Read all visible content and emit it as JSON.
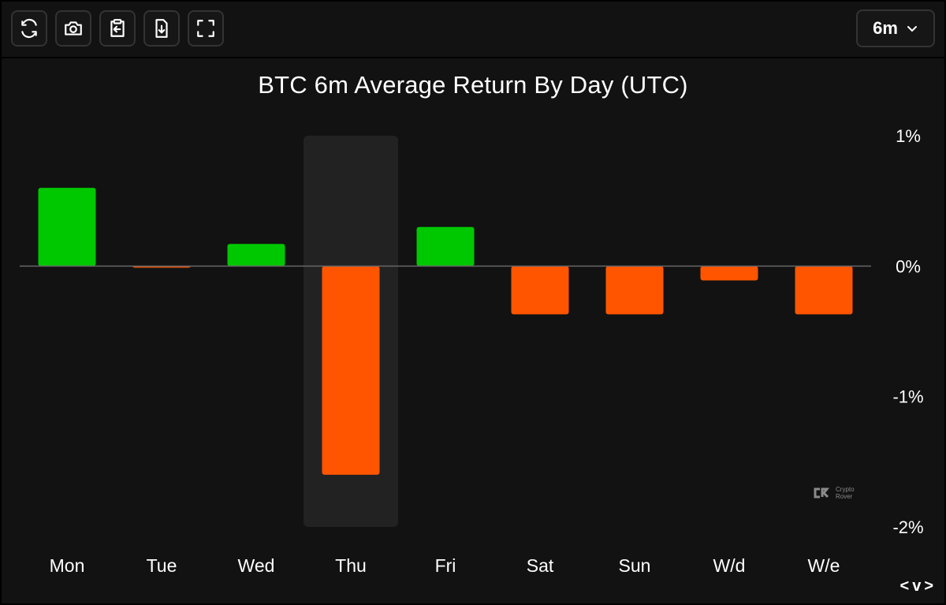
{
  "toolbar": {
    "buttons": [
      {
        "icon": "refresh-icon"
      },
      {
        "icon": "camera-icon"
      },
      {
        "icon": "clipboard-icon"
      },
      {
        "icon": "download-file-icon"
      },
      {
        "icon": "fullscreen-icon"
      }
    ],
    "range_value": "6m"
  },
  "watermark": {
    "line1": "Crypto",
    "line2": "Rover"
  },
  "nav": {
    "prev": "<",
    "toggle": "v",
    "next": ">"
  },
  "colors": {
    "positive": "#00c800",
    "negative": "#ff5500",
    "highlight": "#222222",
    "zero_line": "#666666"
  },
  "chart_data": {
    "type": "bar",
    "title": "BTC 6m Average Return By Day (UTC)",
    "categories": [
      "Mon",
      "Tue",
      "Wed",
      "Thu",
      "Fri",
      "Sat",
      "Sun",
      "W/d",
      "W/e"
    ],
    "values": [
      0.6,
      -0.01,
      0.17,
      -1.6,
      0.3,
      -0.37,
      -0.37,
      -0.11,
      -0.37
    ],
    "ylim": [
      -2,
      1
    ],
    "yticks": [
      "1%",
      "0%",
      "-1%",
      "-2%"
    ],
    "ytick_values": [
      1,
      0,
      -1,
      -2
    ],
    "highlighted": "Thu",
    "grid": false
  }
}
